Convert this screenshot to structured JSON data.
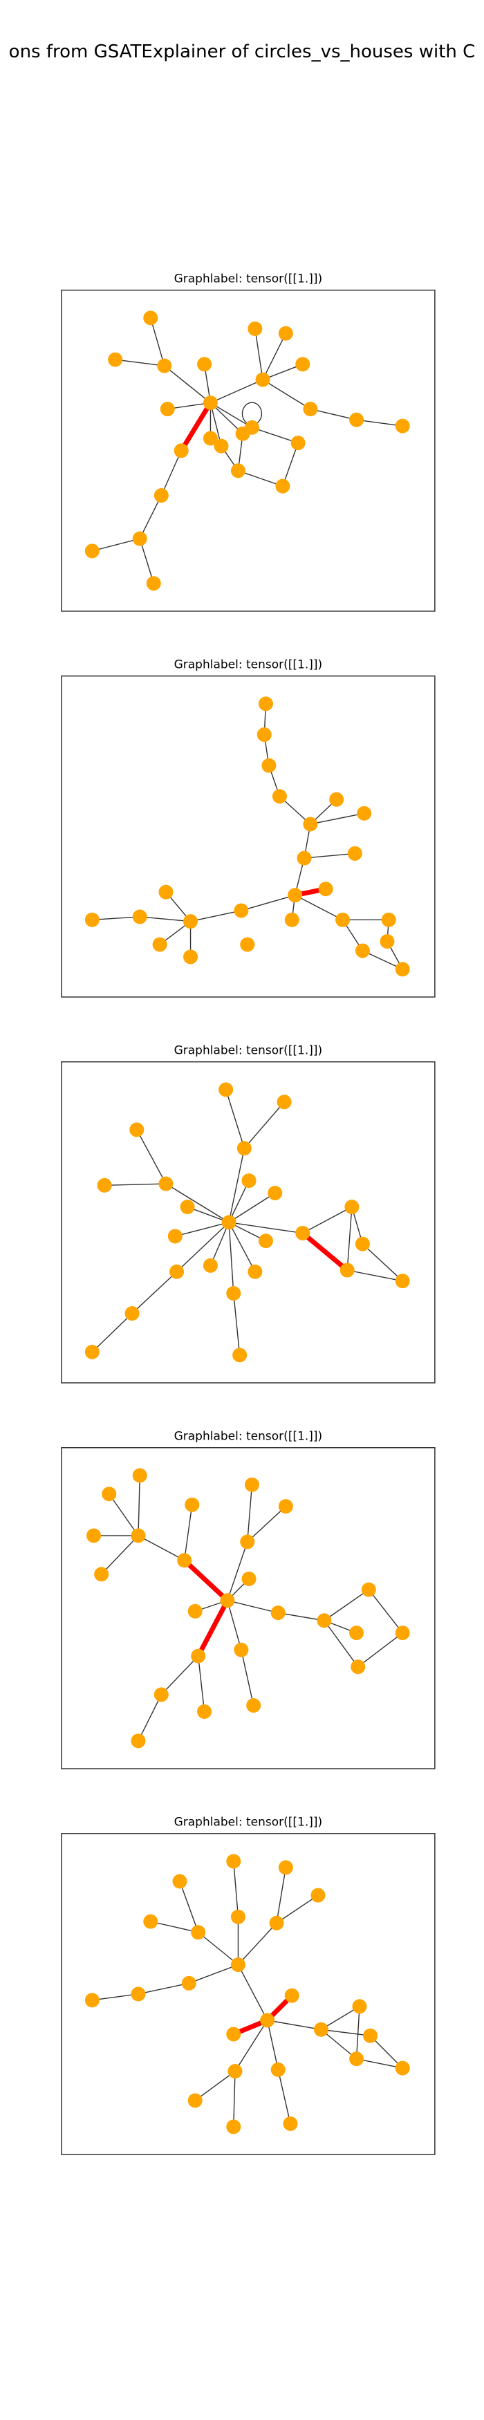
{
  "title": "ons from GSATExplainer of circles_vs_houses with C",
  "panels": [
    {
      "label": "Graphlabel: tensor([[1.]])"
    },
    {
      "label": "Graphlabel: tensor([[1.]])"
    },
    {
      "label": "Graphlabel: tensor([[1.]])"
    },
    {
      "label": "Graphlabel: tensor([[1.]])"
    },
    {
      "label": "Graphlabel: tensor([[1.]])"
    }
  ]
}
